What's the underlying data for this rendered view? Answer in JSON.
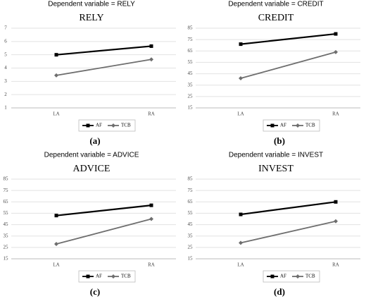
{
  "chart_data": [
    {
      "type": "line",
      "subtitle": "Dependent variable = RELY",
      "title": "RELY",
      "caption": "(a)",
      "categories": [
        "LA",
        "RA"
      ],
      "series": [
        {
          "name": "AF",
          "color": "#000000",
          "values": [
            5.0,
            5.65
          ]
        },
        {
          "name": "TCB",
          "color": "#6e6e6e",
          "values": [
            3.45,
            4.65
          ]
        }
      ],
      "ylim": [
        1,
        7
      ],
      "yticks": [
        1,
        2,
        3,
        4,
        5,
        6,
        7
      ],
      "grid": true
    },
    {
      "type": "line",
      "subtitle": "Dependent variable = CREDIT",
      "title": "CREDIT",
      "caption": "(b)",
      "categories": [
        "LA",
        "RA"
      ],
      "series": [
        {
          "name": "AF",
          "color": "#000000",
          "values": [
            71,
            80
          ]
        },
        {
          "name": "TCB",
          "color": "#6e6e6e",
          "values": [
            41,
            64
          ]
        }
      ],
      "ylim": [
        15,
        85
      ],
      "yticks": [
        15,
        25,
        35,
        45,
        55,
        65,
        75,
        85
      ],
      "grid": true
    },
    {
      "type": "line",
      "subtitle": "Dependent variable = ADVICE",
      "title": "ADVICE",
      "caption": "(c)",
      "categories": [
        "LA",
        "RA"
      ],
      "series": [
        {
          "name": "AF",
          "color": "#000000",
          "values": [
            53,
            62
          ]
        },
        {
          "name": "TCB",
          "color": "#6e6e6e",
          "values": [
            28,
            50
          ]
        }
      ],
      "ylim": [
        15,
        85
      ],
      "yticks": [
        15,
        25,
        35,
        45,
        55,
        65,
        75,
        85
      ],
      "grid": true
    },
    {
      "type": "line",
      "subtitle": "Dependent variable = INVEST",
      "title": "INVEST",
      "caption": "(d)",
      "categories": [
        "LA",
        "RA"
      ],
      "series": [
        {
          "name": "AF",
          "color": "#000000",
          "values": [
            54,
            65
          ]
        },
        {
          "name": "TCB",
          "color": "#6e6e6e",
          "values": [
            29,
            48
          ]
        }
      ],
      "ylim": [
        15,
        85
      ],
      "yticks": [
        15,
        25,
        35,
        45,
        55,
        65,
        75,
        85
      ],
      "grid": true
    }
  ]
}
